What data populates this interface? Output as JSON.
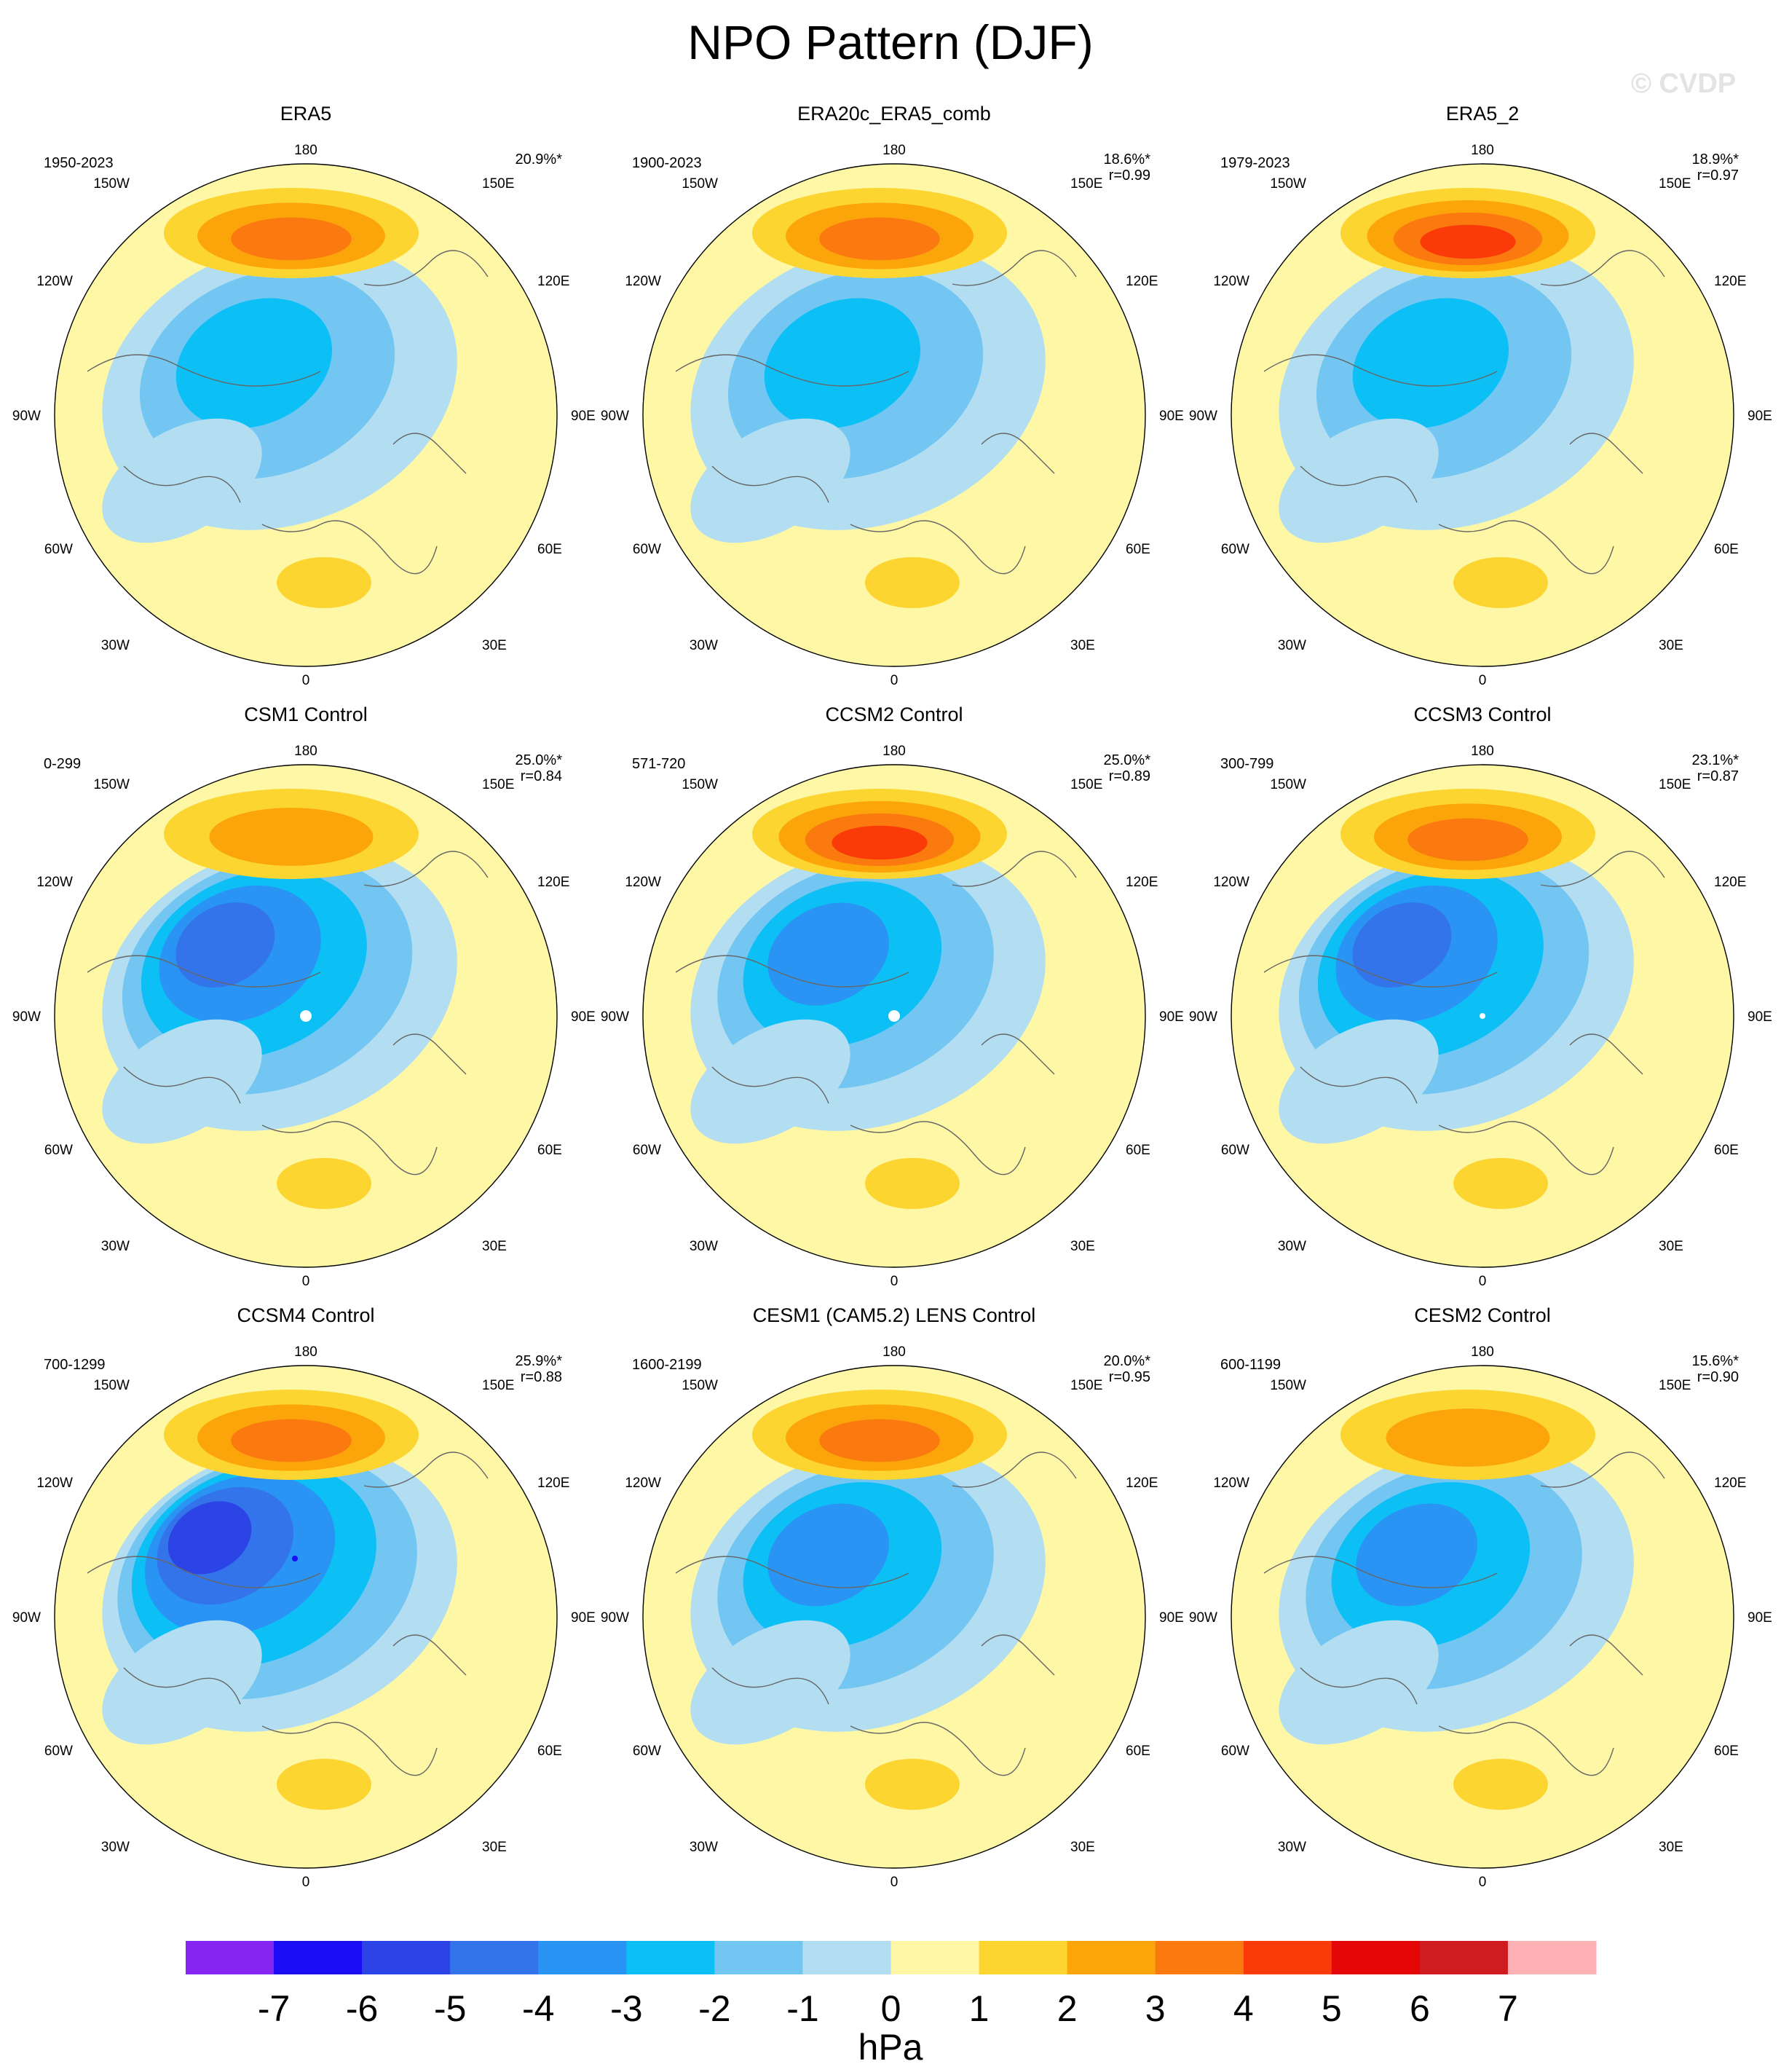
{
  "figure": {
    "title": "NPO Pattern (DJF)",
    "watermark": "© CVDP",
    "units": "hPa"
  },
  "map_labels": {
    "top": "180",
    "bottom": "0",
    "left": "90W",
    "right": "90E",
    "upper_left_1": "150W",
    "upper_left_2": "120W",
    "upper_right_1": "150E",
    "upper_right_2": "120E",
    "lower_left_1": "60W",
    "lower_left_2": "30W",
    "lower_right_1": "60E",
    "lower_right_2": "30E"
  },
  "panels": [
    {
      "title": "ERA5",
      "period": "1950-2023",
      "variance": "20.9%*",
      "corr": "",
      "low_max_level": 3,
      "high_max_level": 3,
      "marker": "none"
    },
    {
      "title": "ERA20c_ERA5_comb",
      "period": "1900-2023",
      "variance": "18.6%*",
      "corr": "r=0.99",
      "low_max_level": 3,
      "high_max_level": 3,
      "marker": "none"
    },
    {
      "title": "ERA5_2",
      "period": "1979-2023",
      "variance": "18.9%*",
      "corr": "r=0.97",
      "low_max_level": 3,
      "high_max_level": 4,
      "marker": "none"
    },
    {
      "title": "CSM1 Control",
      "period": "0-299",
      "variance": "25.0%*",
      "corr": "r=0.84",
      "low_max_level": 5,
      "high_max_level": 2,
      "marker": "white-dot"
    },
    {
      "title": "CCSM2 Control",
      "period": "571-720",
      "variance": "25.0%*",
      "corr": "r=0.89",
      "low_max_level": 4,
      "high_max_level": 4,
      "marker": "white-dot"
    },
    {
      "title": "CCSM3 Control",
      "period": "300-799",
      "variance": "23.1%*",
      "corr": "r=0.87",
      "low_max_level": 5,
      "high_max_level": 3,
      "marker": "small-white-dot"
    },
    {
      "title": "CCSM4 Control",
      "period": "700-1299",
      "variance": "25.9%*",
      "corr": "r=0.88",
      "low_max_level": 6,
      "high_max_level": 3,
      "marker": "blue-dot"
    },
    {
      "title": "CESM1 (CAM5.2) LENS Control",
      "period": "1600-2199",
      "variance": "20.0%*",
      "corr": "r=0.95",
      "low_max_level": 4,
      "high_max_level": 3,
      "marker": "none"
    },
    {
      "title": "CESM2 Control",
      "period": "600-1199",
      "variance": "15.6%*",
      "corr": "r=0.90",
      "low_max_level": 4,
      "high_max_level": 2,
      "marker": "none"
    }
  ],
  "colorbar": {
    "labels": [
      "-7",
      "-6",
      "-5",
      "-4",
      "-3",
      "-2",
      "-1",
      "0",
      "1",
      "2",
      "3",
      "4",
      "5",
      "6",
      "7"
    ],
    "colors": [
      "#8426f0",
      "#1a0cf5",
      "#2c44e6",
      "#3474ea",
      "#2a94f5",
      "#0cc0f5",
      "#74c6f2",
      "#b3def2",
      "#fdf7a6",
      "#fcd531",
      "#fba50a",
      "#fb7a10",
      "#fa3a08",
      "#e40606",
      "#ce1c20",
      "#fdb1b4"
    ],
    "units": "hPa"
  }
}
